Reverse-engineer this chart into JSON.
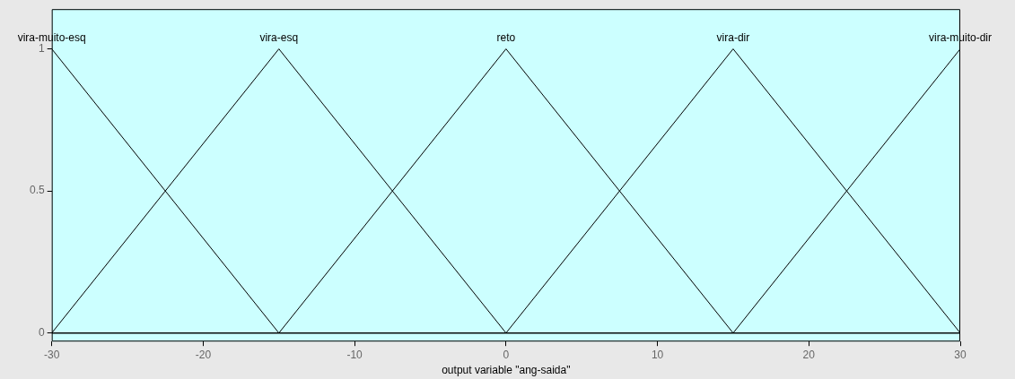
{
  "chart_data": {
    "type": "line",
    "xlabel": "output variable \"ang-saida\"",
    "xlim": [
      -30,
      30
    ],
    "xticks": [
      -30,
      -20,
      -10,
      0,
      10,
      20,
      30
    ],
    "ylim": [
      -0.03,
      1.14
    ],
    "yticks": [
      0,
      0.5,
      1
    ],
    "grid": false,
    "legend": false,
    "series": [
      {
        "name": "vira-muito-esq",
        "color": "#000000",
        "x": [
          -30,
          -15,
          30
        ],
        "values": [
          1,
          0,
          0
        ]
      },
      {
        "name": "vira-esq",
        "color": "#000000",
        "x": [
          -30,
          -15,
          0,
          30
        ],
        "values": [
          0,
          1,
          0,
          0
        ]
      },
      {
        "name": "reto",
        "color": "#000000",
        "x": [
          -30,
          -15,
          0,
          15,
          30
        ],
        "values": [
          0,
          0,
          1,
          0,
          0
        ]
      },
      {
        "name": "vira-dir",
        "color": "#000000",
        "x": [
          -30,
          0,
          15,
          30
        ],
        "values": [
          0,
          0,
          1,
          0
        ]
      },
      {
        "name": "vira-muito-dir",
        "color": "#000000",
        "x": [
          -30,
          15,
          30
        ],
        "values": [
          0,
          0,
          1
        ]
      }
    ]
  }
}
